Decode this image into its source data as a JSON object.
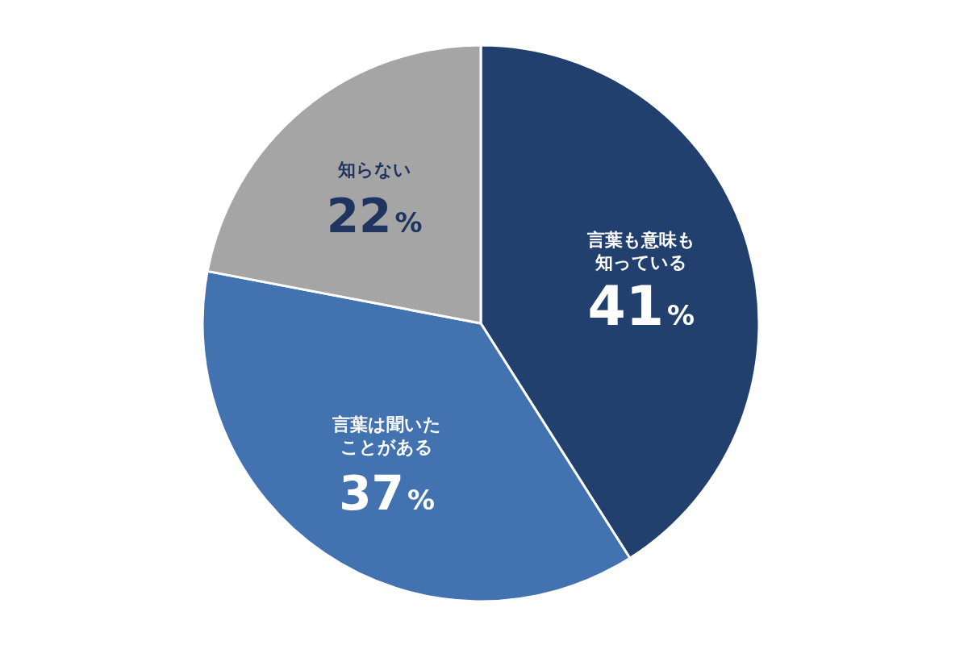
{
  "chart_data": {
    "type": "pie",
    "categories": [
      "言葉も意味も知っている",
      "言葉は聞いたことがある",
      "知らない"
    ],
    "values": [
      41,
      37,
      22
    ],
    "value_labels": [
      "41%",
      "37%",
      "22%"
    ],
    "colors": [
      "#22406e",
      "#4272b0",
      "#a5a5a5"
    ]
  }
}
